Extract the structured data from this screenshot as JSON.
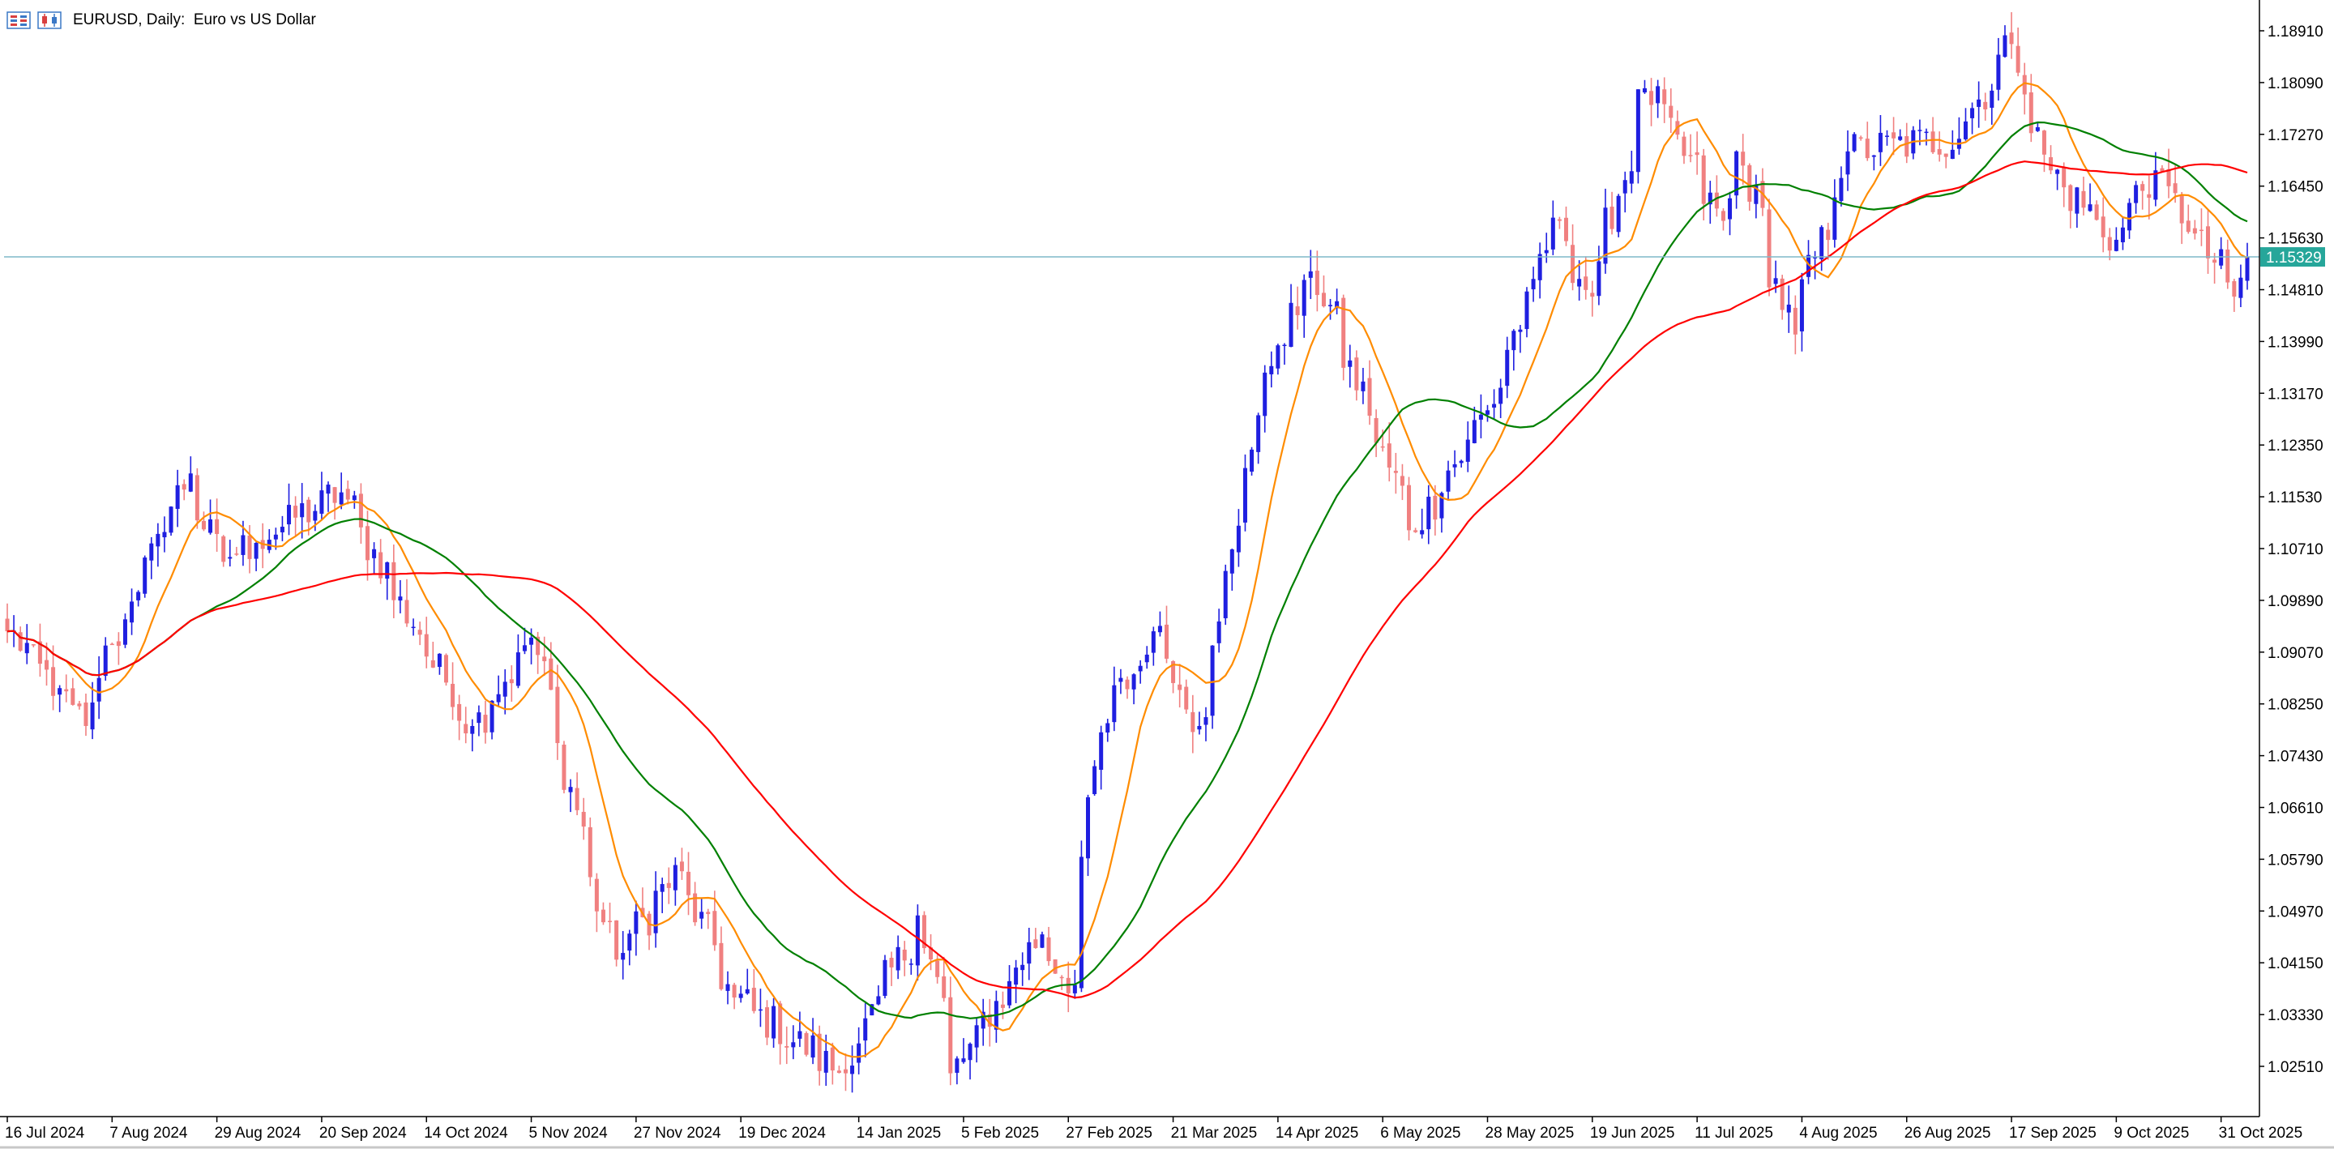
{
  "chart": {
    "title": "EURUSD, Daily:  Euro vs US Dollar",
    "icons": [
      "bar-chart-icon",
      "candlestick-chart-icon"
    ]
  },
  "colors": {
    "bull": "#1f1fe0",
    "bear": "#f08080",
    "ma_fast": "#ff8c00",
    "ma_mid": "#008000",
    "ma_slow": "#ff0000",
    "bid_line": "#7fb8c8",
    "bid_label_bg": "#26a69a"
  },
  "chart_data": {
    "type": "candlestick",
    "symbol": "EURUSD",
    "timeframe": "Daily",
    "title": "EURUSD, Daily:  Euro vs US Dollar",
    "ylim": [
      1.02,
      1.195
    ],
    "y_ticks": [
      "1.18910",
      "1.18090",
      "1.17270",
      "1.16450",
      "1.15630",
      "1.14810",
      "1.13990",
      "1.13170",
      "1.12350",
      "1.11530",
      "1.10710",
      "1.09890",
      "1.09070",
      "1.08250",
      "1.07430",
      "1.06610",
      "1.05790",
      "1.04970",
      "1.04150",
      "1.03330",
      "1.02510"
    ],
    "x_ticks": [
      "16 Jul 2024",
      "7 Aug 2024",
      "29 Aug 2024",
      "20 Sep 2024",
      "14 Oct 2024",
      "5 Nov 2024",
      "27 Nov 2024",
      "19 Dec 2024",
      "14 Jan 2025",
      "5 Feb 2025",
      "27 Feb 2025",
      "21 Mar 2025",
      "14 Apr 2025",
      "6 May 2025",
      "28 May 2025",
      "19 Jun 2025",
      "11 Jul 2025",
      "4 Aug 2025",
      "26 Aug 2025",
      "17 Sep 2025",
      "9 Oct 2025",
      "31 Oct 2025"
    ],
    "current_price": "1.15329",
    "close_anchors": [
      {
        "date": "2024-07-16",
        "close": 1.094
      },
      {
        "date": "2024-07-26",
        "close": 1.085
      },
      {
        "date": "2024-08-01",
        "close": 1.079
      },
      {
        "date": "2024-08-07",
        "close": 1.092
      },
      {
        "date": "2024-08-23",
        "close": 1.119
      },
      {
        "date": "2024-08-30",
        "close": 1.105
      },
      {
        "date": "2024-09-06",
        "close": 1.108
      },
      {
        "date": "2024-09-25",
        "close": 1.116
      },
      {
        "date": "2024-10-14",
        "close": 1.09
      },
      {
        "date": "2024-10-23",
        "close": 1.079
      },
      {
        "date": "2024-11-05",
        "close": 1.093
      },
      {
        "date": "2024-11-22",
        "close": 1.042
      },
      {
        "date": "2024-12-06",
        "close": 1.056
      },
      {
        "date": "2024-12-18",
        "close": 1.036
      },
      {
        "date": "2025-01-10",
        "close": 1.024
      },
      {
        "date": "2025-01-27",
        "close": 1.049
      },
      {
        "date": "2025-02-03",
        "close": 1.024
      },
      {
        "date": "2025-02-21",
        "close": 1.046
      },
      {
        "date": "2025-02-28",
        "close": 1.038
      },
      {
        "date": "2025-03-06",
        "close": 1.078
      },
      {
        "date": "2025-03-18",
        "close": 1.094
      },
      {
        "date": "2025-03-27",
        "close": 1.079
      },
      {
        "date": "2025-04-11",
        "close": 1.136
      },
      {
        "date": "2025-04-21",
        "close": 1.151
      },
      {
        "date": "2025-05-12",
        "close": 1.11
      },
      {
        "date": "2025-05-28",
        "close": 1.129
      },
      {
        "date": "2025-06-12",
        "close": 1.159
      },
      {
        "date": "2025-06-19",
        "close": 1.147
      },
      {
        "date": "2025-07-01",
        "close": 1.18
      },
      {
        "date": "2025-07-17",
        "close": 1.159
      },
      {
        "date": "2025-07-21",
        "close": 1.17
      },
      {
        "date": "2025-08-01",
        "close": 1.141
      },
      {
        "date": "2025-08-13",
        "close": 1.17
      },
      {
        "date": "2025-09-05",
        "close": 1.172
      },
      {
        "date": "2025-09-17",
        "close": 1.187
      },
      {
        "date": "2025-09-25",
        "close": 1.167
      },
      {
        "date": "2025-10-09",
        "close": 1.156
      },
      {
        "date": "2025-10-17",
        "close": 1.167
      },
      {
        "date": "2025-11-04",
        "close": 1.147
      },
      {
        "date": "2025-11-06",
        "close": 1.1533
      }
    ],
    "series": [
      {
        "name": "",
        "color": "#ff8c00",
        "period": 10
      },
      {
        "name": "",
        "color": "#008000",
        "period": 30
      },
      {
        "name": "",
        "color": "#ff0000",
        "period": 60
      }
    ],
    "grid": false
  }
}
